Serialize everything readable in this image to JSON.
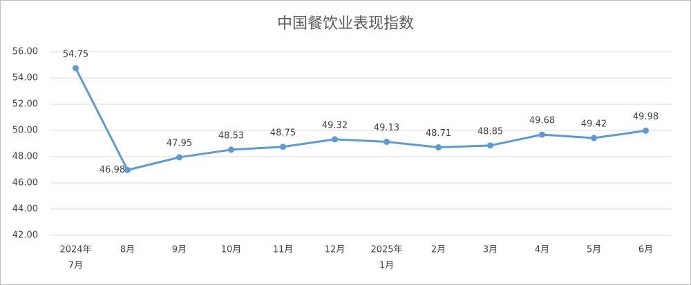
{
  "chart_data": {
    "type": "line",
    "title": "中国餐饮业表现指数",
    "categories": [
      [
        "2024年",
        "7月"
      ],
      [
        "8月"
      ],
      [
        "9月"
      ],
      [
        "10月"
      ],
      [
        "11月"
      ],
      [
        "12月"
      ],
      [
        "2025年",
        "1月"
      ],
      [
        "2月"
      ],
      [
        "3月"
      ],
      [
        "4月"
      ],
      [
        "5月"
      ],
      [
        "6月"
      ]
    ],
    "series": [
      {
        "name": "中国餐饮业表现指数",
        "color": "#5b9bd5",
        "values": [
          54.75,
          46.98,
          47.95,
          48.53,
          48.75,
          49.32,
          49.13,
          48.71,
          48.85,
          49.68,
          49.42,
          49.98
        ]
      }
    ],
    "ylim": [
      42,
      56
    ],
    "yticks": [
      {
        "value": 42,
        "label": "42.00"
      },
      {
        "value": 44,
        "label": "44.00"
      },
      {
        "value": 46,
        "label": "46.00"
      },
      {
        "value": 48,
        "label": "48.00"
      },
      {
        "value": 50,
        "label": "50.00"
      },
      {
        "value": 52,
        "label": "52.00"
      },
      {
        "value": 54,
        "label": "54.00"
      },
      {
        "value": 56,
        "label": "56.00"
      }
    ],
    "grid": true
  }
}
